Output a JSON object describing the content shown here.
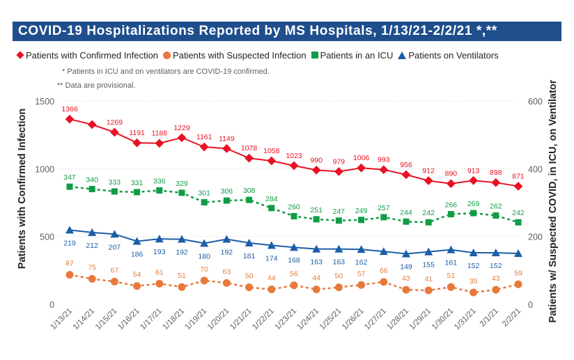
{
  "title": "COVID-19 Hospitalizations Reported by MS Hospitals, 1/13/21-2/2/21 *,**",
  "notes": [
    "* Patients in ICU and on ventilators are COVID-19 confirmed.",
    "** Data are provisional."
  ],
  "chart_data": {
    "type": "line",
    "title": "COVID-19 Hospitalizations Reported by MS Hospitals, 1/13/21-2/2/21 *,**",
    "ylabel": "Patients with Confirmed Infection",
    "y2label": "Patients w/ Suspected COVID, in ICU, on Ventilator",
    "ylim": [
      0,
      1500
    ],
    "y2lim": [
      0,
      600
    ],
    "yticks": [
      "1500",
      "1000",
      "500",
      "0"
    ],
    "y2ticks": [
      "600",
      "400",
      "200",
      "0"
    ],
    "grid": true,
    "legend": "top",
    "categories": [
      "1/13/21",
      "1/14/21",
      "1/15/21",
      "1/16/21",
      "1/17/21",
      "1/18/21",
      "1/19/21",
      "1/20/21",
      "1/21/21",
      "1/22/21",
      "1/23/21",
      "1/24/21",
      "1/25/21",
      "1/26/21",
      "1/27/21",
      "1/28/21",
      "1/29/21",
      "1/30/21",
      "1/31/21",
      "2/1/21",
      "2/2/21"
    ],
    "series": [
      {
        "name": "Patients with Confirmed Infection",
        "axis": "left",
        "color": "#e81123",
        "marker": "diamond",
        "dashed": false,
        "values": [
          1366,
          1326,
          1269,
          1191,
          1188,
          1229,
          1161,
          1149,
          1078,
          1058,
          1023,
          990,
          979,
          1006,
          993,
          956,
          912,
          890,
          913,
          898,
          871
        ],
        "labels": [
          "1366",
          "",
          "1269",
          "1191",
          "1188",
          "1229",
          "1161",
          "1149",
          "1078",
          "1058",
          "1023",
          "990",
          "979",
          "1006",
          "993",
          "956",
          "912",
          "890",
          "913",
          "898",
          "871"
        ]
      },
      {
        "name": "Patients with Suspected Infection",
        "axis": "right",
        "color": "#e8793d",
        "marker": "circle",
        "dashed": true,
        "values": [
          87,
          75,
          67,
          54,
          61,
          51,
          70,
          63,
          50,
          44,
          56,
          44,
          50,
          57,
          66,
          43,
          41,
          51,
          35,
          43,
          59
        ],
        "labels": [
          "87",
          "75",
          "67",
          "54",
          "61",
          "51",
          "70",
          "63",
          "50",
          "44",
          "56",
          "44",
          "50",
          "57",
          "66",
          "43",
          "41",
          "51",
          "35",
          "43",
          "59"
        ]
      },
      {
        "name": "Patients in an ICU",
        "axis": "right",
        "color": "#109c46",
        "marker": "square",
        "dashed": true,
        "values": [
          347,
          340,
          333,
          331,
          336,
          329,
          301,
          306,
          308,
          284,
          260,
          251,
          247,
          249,
          257,
          244,
          242,
          266,
          269,
          262,
          242
        ],
        "labels": [
          "347",
          "340",
          "333",
          "331",
          "336",
          "329",
          "301",
          "306",
          "308",
          "284",
          "260",
          "251",
          "247",
          "249",
          "257",
          "244",
          "242",
          "266",
          "269",
          "262",
          "242"
        ]
      },
      {
        "name": "Patients on Ventilators",
        "axis": "right",
        "color": "#1a5ea8",
        "marker": "triangle",
        "dashed": false,
        "values": [
          219,
          212,
          207,
          186,
          193,
          192,
          180,
          192,
          181,
          174,
          168,
          163,
          163,
          162,
          156,
          149,
          155,
          161,
          152,
          152,
          150
        ],
        "labels": [
          "219",
          "212",
          "207",
          "186",
          "193",
          "192",
          "180",
          "192",
          "181",
          "174",
          "168",
          "163",
          "163",
          "162",
          "",
          "149",
          "155",
          "161",
          "152",
          "152",
          ""
        ]
      }
    ]
  }
}
